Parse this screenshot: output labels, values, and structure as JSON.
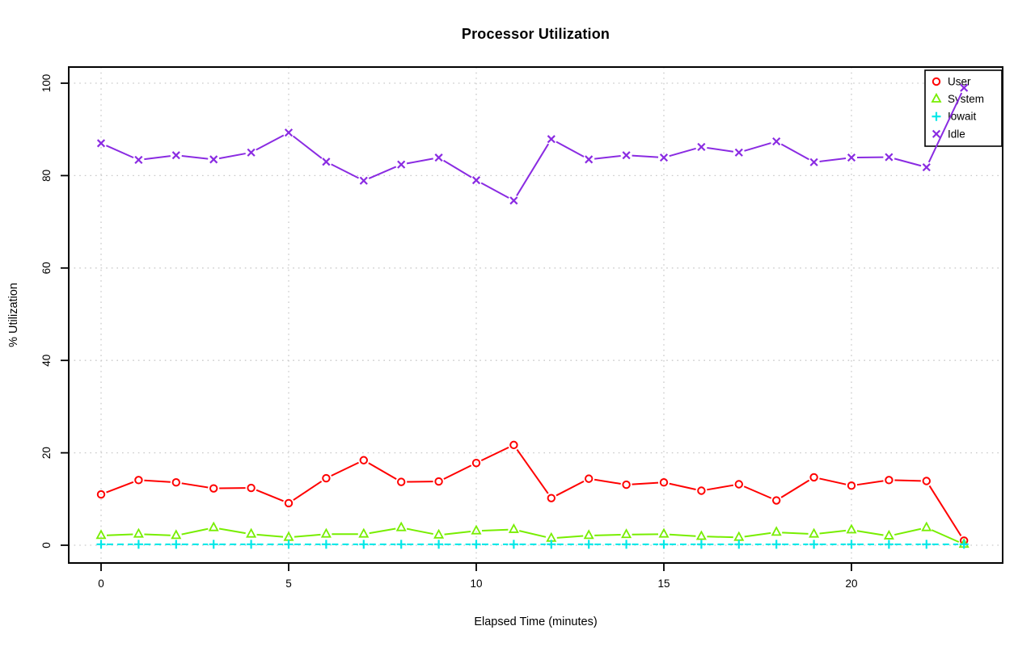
{
  "chart_data": {
    "type": "line",
    "title": "Processor Utilization",
    "xlabel": "Elapsed Time (minutes)",
    "ylabel": "% Utilization",
    "xlim": [
      -0.7,
      24
    ],
    "ylim": [
      -3.8,
      103.5
    ],
    "xticks": [
      0,
      5,
      10,
      15,
      20
    ],
    "yticks": [
      0,
      20,
      40,
      60,
      80,
      100
    ],
    "grid": {
      "show": true,
      "style": "dotted",
      "color": "#c9c9c9"
    },
    "legend": {
      "position": "top-right",
      "border": true
    },
    "x": [
      0,
      1,
      2,
      3,
      4,
      5,
      6,
      7,
      8,
      9,
      10,
      11,
      12,
      13,
      14,
      15,
      16,
      17,
      18,
      19,
      20,
      21,
      22,
      23
    ],
    "series": [
      {
        "name": "User",
        "color": "#ff0000",
        "marker": "circle",
        "line_style": "solid",
        "values": [
          11,
          14.1,
          13.6,
          12.3,
          12.4,
          9.1,
          14.5,
          18.4,
          13.7,
          13.8,
          17.8,
          21.7,
          10.2,
          14.4,
          13.1,
          13.6,
          11.8,
          13.2,
          9.7,
          14.7,
          12.9,
          14.1,
          13.9,
          1
        ]
      },
      {
        "name": "System",
        "color": "#77ee00",
        "marker": "triangle",
        "line_style": "solid",
        "values": [
          2.1,
          2.4,
          2.1,
          3.8,
          2.4,
          1.7,
          2.4,
          2.4,
          3.8,
          2.2,
          3.1,
          3.4,
          1.5,
          2.1,
          2.3,
          2.4,
          1.9,
          1.7,
          2.8,
          2.4,
          3.3,
          2,
          3.8,
          0.2
        ]
      },
      {
        "name": "Iowait",
        "color": "#00e8e8",
        "marker": "plus",
        "line_style": "dashed",
        "values": [
          0.2,
          0.2,
          0.2,
          0.2,
          0.2,
          0.2,
          0.2,
          0.2,
          0.2,
          0.2,
          0.2,
          0.2,
          0.2,
          0.2,
          0.2,
          0.2,
          0.2,
          0.2,
          0.2,
          0.2,
          0.2,
          0.2,
          0.2,
          0.2
        ]
      },
      {
        "name": "Idle",
        "color": "#8a2be2",
        "marker": "x",
        "line_style": "solid",
        "values": [
          87,
          83.4,
          84.4,
          83.5,
          85,
          89.3,
          83,
          78.9,
          82.4,
          83.9,
          79,
          74.6,
          87.9,
          83.5,
          84.4,
          83.9,
          86.2,
          85,
          87.4,
          82.9,
          83.9,
          84,
          81.8,
          99
        ]
      }
    ]
  }
}
